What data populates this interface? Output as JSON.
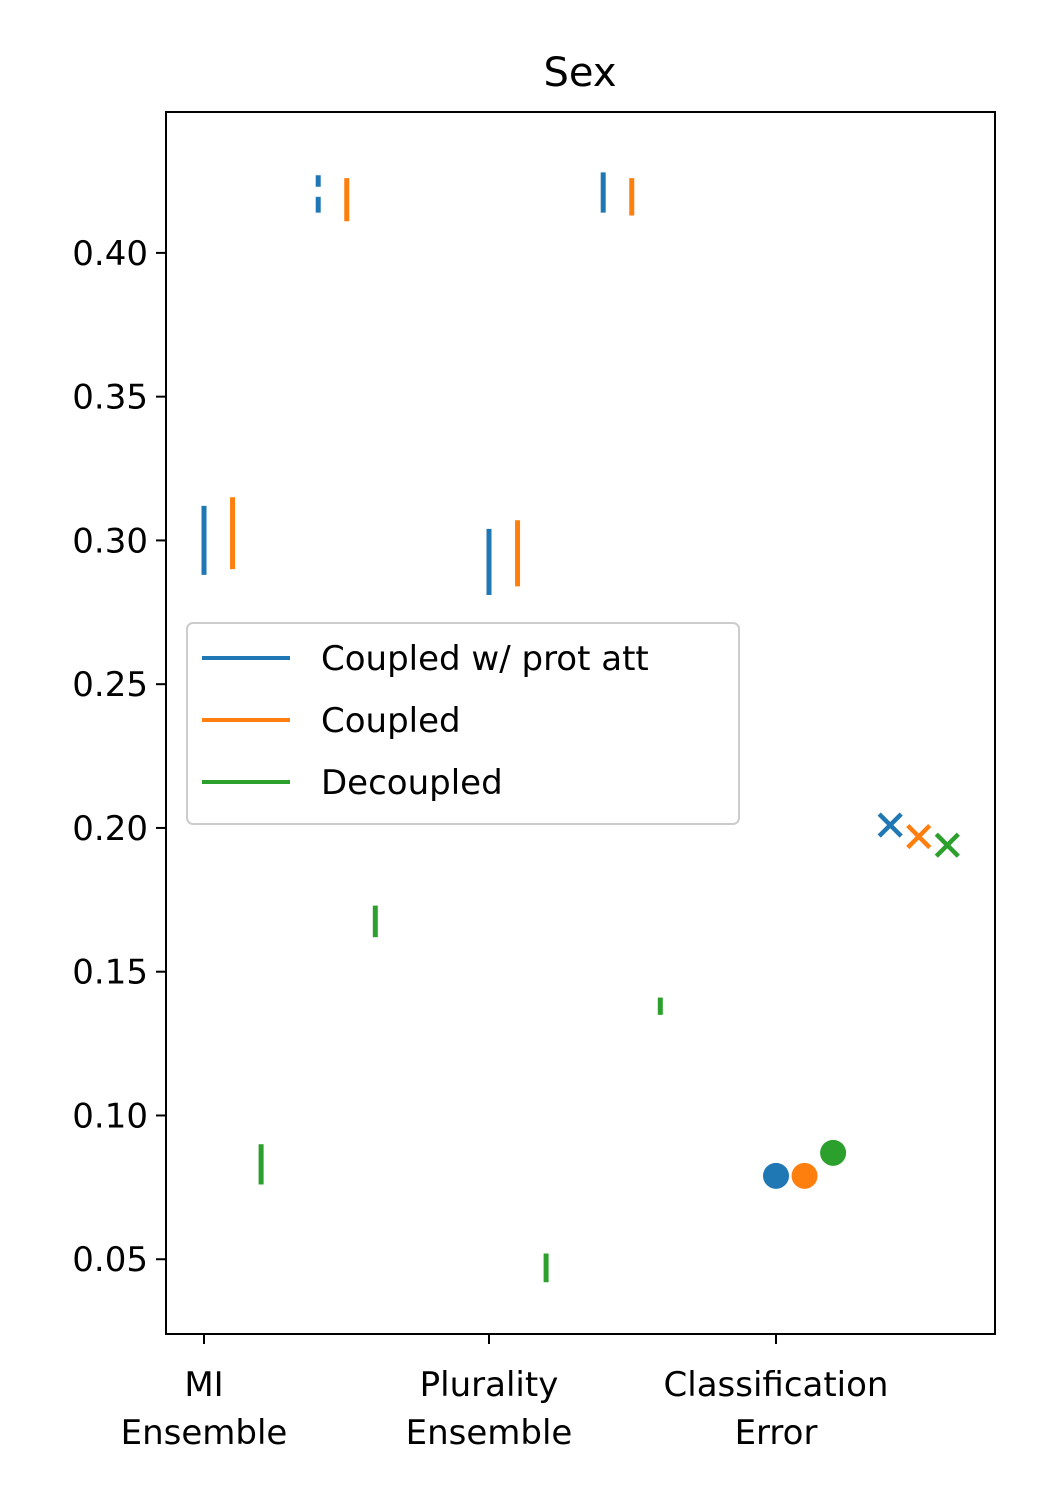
{
  "chart_data": {
    "type": "scatter",
    "title": "Sex",
    "xlabel": "",
    "ylabel": "",
    "categories": [
      "MI\nEnsemble",
      "Plurality\nEnsemble",
      "Classification\nError"
    ],
    "ylim": [
      0.024,
      0.449
    ],
    "yticks": [
      0.05,
      0.1,
      0.15,
      0.2,
      0.25,
      0.3,
      0.35,
      0.4
    ],
    "ytick_labels": [
      "0.05",
      "0.10",
      "0.15",
      "0.20",
      "0.25",
      "0.30",
      "0.35",
      "0.40"
    ],
    "grid": false,
    "legend_position": "center-left",
    "series": [
      {
        "name": "Coupled w/ prot att",
        "color": "#1f77b4",
        "ranges": [
          {
            "category": 0,
            "offset": 0.0,
            "low": 0.288,
            "high": 0.312
          },
          {
            "category": 1,
            "offset": 0.0,
            "low": 0.281,
            "high": 0.304
          },
          {
            "category": 0,
            "offset": 0.4,
            "low": 0.42,
            "high": 0.423,
            "gap": [
              0.414,
              0.4195
            ],
            "top": 0.427
          },
          {
            "category": 1,
            "offset": 0.4,
            "low": 0.414,
            "high": 0.428
          }
        ],
        "dot": {
          "category": 2,
          "offset": 0.0,
          "y": 0.079
        },
        "cross": {
          "category": 2,
          "offset": 0.4,
          "y": 0.201
        }
      },
      {
        "name": "Coupled",
        "color": "#ff7f0e",
        "ranges": [
          {
            "category": 0,
            "offset": 0.1,
            "low": 0.29,
            "high": 0.315
          },
          {
            "category": 1,
            "offset": 0.1,
            "low": 0.284,
            "high": 0.307
          },
          {
            "category": 0,
            "offset": 0.5,
            "low": 0.411,
            "high": 0.426
          },
          {
            "category": 1,
            "offset": 0.5,
            "low": 0.413,
            "high": 0.426
          }
        ],
        "dot": {
          "category": 2,
          "offset": 0.1,
          "y": 0.079
        },
        "cross": {
          "category": 2,
          "offset": 0.5,
          "y": 0.197
        }
      },
      {
        "name": "Decoupled",
        "color": "#2ca02c",
        "ranges": [
          {
            "category": 0,
            "offset": 0.2,
            "low": 0.076,
            "high": 0.09
          },
          {
            "category": 1,
            "offset": 0.2,
            "low": 0.042,
            "high": 0.052
          },
          {
            "category": 0,
            "offset": 0.6,
            "low": 0.162,
            "high": 0.173
          },
          {
            "category": 1,
            "offset": 0.6,
            "low": 0.135,
            "high": 0.141
          }
        ],
        "dot": {
          "category": 2,
          "offset": 0.2,
          "y": 0.087
        },
        "cross": {
          "category": 2,
          "offset": 0.6,
          "y": 0.194
        }
      }
    ]
  }
}
